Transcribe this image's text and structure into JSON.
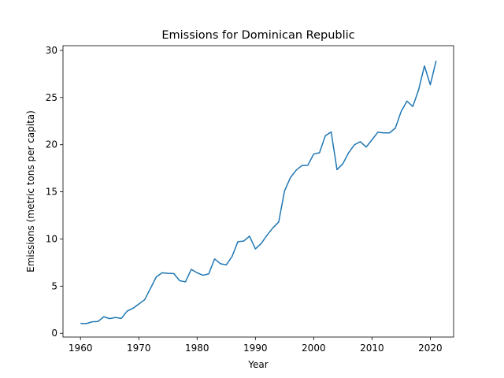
{
  "chart_data": {
    "type": "line",
    "title": "Emissions for Dominican Republic",
    "xlabel": "Year",
    "ylabel": "Emissions (metric tons per capita)",
    "xlim": [
      1957,
      2024
    ],
    "ylim": [
      -0.4,
      30.5
    ],
    "x_ticks": [
      1960,
      1970,
      1980,
      1990,
      2000,
      2010,
      2020
    ],
    "y_ticks": [
      0,
      5,
      10,
      15,
      20,
      25,
      30
    ],
    "grid": false,
    "legend": "none",
    "series": [
      {
        "color": "#1f77b4",
        "x": [
          1960,
          1961,
          1962,
          1963,
          1964,
          1965,
          1966,
          1967,
          1968,
          1969,
          1970,
          1971,
          1972,
          1973,
          1974,
          1975,
          1976,
          1977,
          1978,
          1979,
          1980,
          1981,
          1982,
          1983,
          1984,
          1985,
          1986,
          1987,
          1988,
          1989,
          1990,
          1991,
          1992,
          1993,
          1994,
          1995,
          1996,
          1997,
          1998,
          1999,
          2000,
          2001,
          2002,
          2003,
          2004,
          2005,
          2006,
          2007,
          2008,
          2009,
          2010,
          2011,
          2012,
          2013,
          2014,
          2015,
          2016,
          2017,
          2018,
          2019,
          2020,
          2021
        ],
        "values": [
          1.05,
          1.03,
          1.22,
          1.25,
          1.75,
          1.55,
          1.68,
          1.57,
          2.35,
          2.65,
          3.1,
          3.55,
          4.75,
          5.98,
          6.42,
          6.35,
          6.33,
          5.58,
          5.45,
          6.78,
          6.42,
          6.15,
          6.3,
          7.88,
          7.38,
          7.25,
          8.15,
          9.72,
          9.78,
          10.3,
          8.95,
          9.52,
          10.4,
          11.18,
          11.8,
          15.1,
          16.5,
          17.3,
          17.8,
          17.82,
          19.0,
          19.15,
          20.95,
          21.35,
          17.35,
          17.98,
          19.15,
          20.0,
          20.32,
          19.75,
          20.52,
          21.32,
          21.25,
          21.25,
          21.75,
          23.52,
          24.62,
          24.05,
          25.82,
          28.35,
          26.35,
          28.9
        ]
      }
    ]
  }
}
